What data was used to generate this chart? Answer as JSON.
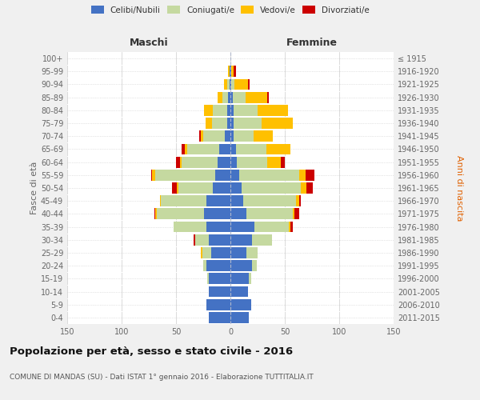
{
  "age_groups": [
    "0-4",
    "5-9",
    "10-14",
    "15-19",
    "20-24",
    "25-29",
    "30-34",
    "35-39",
    "40-44",
    "45-49",
    "50-54",
    "55-59",
    "60-64",
    "65-69",
    "70-74",
    "75-79",
    "80-84",
    "85-89",
    "90-94",
    "95-99",
    "100+"
  ],
  "birth_years": [
    "2011-2015",
    "2006-2010",
    "2001-2005",
    "1996-2000",
    "1991-1995",
    "1986-1990",
    "1981-1985",
    "1976-1980",
    "1971-1975",
    "1966-1970",
    "1961-1965",
    "1956-1960",
    "1951-1955",
    "1946-1950",
    "1941-1945",
    "1936-1940",
    "1931-1935",
    "1926-1930",
    "1921-1925",
    "1916-1920",
    "≤ 1915"
  ],
  "males": {
    "celibi": [
      20,
      22,
      20,
      20,
      22,
      18,
      20,
      22,
      24,
      22,
      16,
      14,
      12,
      10,
      5,
      3,
      3,
      2,
      1,
      1,
      0
    ],
    "coniugati": [
      0,
      0,
      0,
      1,
      3,
      8,
      12,
      30,
      44,
      42,
      32,
      55,
      33,
      30,
      20,
      14,
      13,
      5,
      2,
      0,
      0
    ],
    "vedovi": [
      0,
      0,
      0,
      0,
      0,
      1,
      0,
      0,
      1,
      1,
      1,
      3,
      1,
      2,
      2,
      6,
      8,
      5,
      3,
      1,
      0
    ],
    "divorziati": [
      0,
      0,
      0,
      0,
      0,
      0,
      2,
      0,
      1,
      0,
      5,
      1,
      4,
      3,
      2,
      0,
      0,
      0,
      0,
      0,
      0
    ]
  },
  "females": {
    "nubili": [
      17,
      19,
      16,
      17,
      20,
      15,
      20,
      22,
      15,
      12,
      10,
      8,
      6,
      5,
      3,
      3,
      3,
      2,
      1,
      1,
      0
    ],
    "coniugate": [
      0,
      0,
      0,
      2,
      4,
      10,
      18,
      32,
      42,
      48,
      55,
      55,
      28,
      28,
      18,
      26,
      22,
      12,
      3,
      0,
      0
    ],
    "vedove": [
      0,
      0,
      0,
      0,
      0,
      0,
      0,
      1,
      2,
      3,
      5,
      6,
      12,
      22,
      18,
      28,
      28,
      20,
      12,
      2,
      0
    ],
    "divorziate": [
      0,
      0,
      0,
      0,
      0,
      0,
      0,
      2,
      4,
      2,
      6,
      8,
      4,
      0,
      0,
      0,
      0,
      1,
      2,
      2,
      0
    ]
  },
  "colors": {
    "celibi": "#4472c4",
    "coniugati": "#c5d9a0",
    "vedovi": "#ffc000",
    "divorziati": "#cc0000"
  },
  "title": "Popolazione per età, sesso e stato civile - 2016",
  "subtitle": "COMUNE DI MANDAS (SU) - Dati ISTAT 1° gennaio 2016 - Elaborazione TUTTITALIA.IT",
  "xlabel_left": "Maschi",
  "xlabel_right": "Femmine",
  "ylabel_left": "Fasce di età",
  "ylabel_right": "Anni di nascita",
  "xlim": 150,
  "background_color": "#f0f0f0",
  "plot_bg": "#ffffff"
}
